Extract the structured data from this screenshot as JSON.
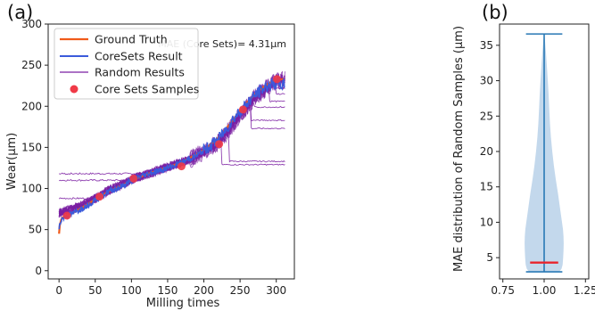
{
  "chart_data": [
    {
      "panel_label": "(a)",
      "type": "line",
      "xlabel": "Milling times",
      "ylabel": "Wear(μm)",
      "xlim": [
        -15,
        325
      ],
      "ylim": [
        -10,
        300
      ],
      "x_ticks": [
        0,
        50,
        100,
        150,
        200,
        250,
        300
      ],
      "y_ticks": [
        0,
        50,
        100,
        150,
        200,
        250,
        300
      ],
      "legend_position": "top-left",
      "annotation": "MAE (Core Sets)= 4.31μm",
      "colors": {
        "ground_truth": "#f05a1a",
        "coresets": "#3b5bdb",
        "random": "#7b1fa2",
        "samples": "#f03a47"
      },
      "series": [
        {
          "name": "Ground Truth",
          "x": [
            0,
            1,
            3,
            5,
            10,
            20,
            30,
            40,
            50,
            60,
            70,
            80,
            90,
            100,
            110,
            120,
            130,
            140,
            150,
            160,
            170,
            180,
            190,
            200,
            210,
            220,
            230,
            240,
            250,
            260,
            270,
            280,
            290,
            300,
            310
          ],
          "y": [
            45,
            55,
            62,
            65,
            67,
            71,
            76,
            81,
            87,
            92,
            97,
            101,
            105,
            110,
            113,
            117,
            120,
            123,
            126,
            129,
            133,
            137,
            142,
            147,
            154,
            162,
            172,
            183,
            195,
            205,
            214,
            222,
            228,
            232,
            233
          ]
        },
        {
          "name": "CoreSets Result",
          "x": [
            0,
            1,
            3,
            5,
            10,
            20,
            30,
            40,
            50,
            60,
            70,
            80,
            90,
            100,
            110,
            120,
            130,
            140,
            150,
            160,
            170,
            180,
            190,
            200,
            210,
            220,
            230,
            240,
            250,
            260,
            270,
            280,
            290,
            300,
            310
          ],
          "y": [
            50,
            56,
            62,
            64,
            66,
            70,
            75,
            80,
            86,
            92,
            97,
            100,
            104,
            110,
            114,
            117,
            120,
            122,
            125,
            128,
            132,
            136,
            140,
            146,
            153,
            160,
            171,
            184,
            194,
            204,
            213,
            220,
            226,
            228,
            226
          ]
        },
        {
          "name": "Random Results",
          "x": [
            0,
            1,
            3,
            5,
            10,
            20,
            30,
            40,
            50,
            60,
            70,
            80,
            90,
            100,
            110,
            120,
            130,
            140,
            150,
            160,
            170,
            180,
            190,
            200,
            210,
            220,
            230,
            240,
            250,
            260,
            270,
            280,
            290,
            300,
            310
          ],
          "y": [
            70,
            70,
            71,
            72,
            73,
            75,
            79,
            83,
            88,
            93,
            98,
            102,
            106,
            111,
            114,
            117,
            120,
            123,
            126,
            129,
            132,
            135,
            140,
            145,
            150,
            156,
            166,
            178,
            190,
            200,
            210,
            218,
            225,
            230,
            232
          ]
        }
      ],
      "random_flat_levels": [
        {
          "start_x": 0,
          "level": 118
        },
        {
          "start_x": 0,
          "level": 110
        },
        {
          "start_x": 0,
          "level": 88
        },
        {
          "start_x": 235,
          "level": 133
        },
        {
          "start_x": 225,
          "level": 129
        },
        {
          "start_x": 265,
          "level": 173
        },
        {
          "start_x": 265,
          "level": 183
        },
        {
          "start_x": 270,
          "level": 199
        },
        {
          "start_x": 290,
          "level": 206
        },
        {
          "start_x": 300,
          "level": 215
        },
        {
          "start_x": 300,
          "level": 222
        }
      ],
      "samples": {
        "name": "Core Sets Samples",
        "x": [
          11,
          56,
          103,
          169,
          221,
          254,
          301
        ],
        "y": [
          67,
          90,
          112,
          127,
          154,
          196,
          233
        ]
      }
    },
    {
      "panel_label": "(b)",
      "type": "violin",
      "ylabel": "MAE distribution of Random Samples (μm)",
      "xlim": [
        0.73,
        1.27
      ],
      "ylim": [
        2.0,
        38.0
      ],
      "x_ticks": [
        0.75,
        1.0,
        1.25
      ],
      "x_tick_labels": [
        "0.75",
        "1.00",
        "1.25"
      ],
      "y_ticks": [
        5,
        10,
        15,
        20,
        25,
        30,
        35
      ],
      "position": 1.0,
      "min": 3.0,
      "max": 36.6,
      "mean": 4.31,
      "density_profile": {
        "y": [
          3.0,
          3.4,
          4,
          5,
          6,
          7,
          8,
          9,
          10,
          12,
          14,
          16,
          18,
          20,
          22,
          24,
          26,
          28,
          30,
          32,
          34,
          36,
          36.6
        ],
        "half_width": [
          0.09,
          0.105,
          0.112,
          0.115,
          0.117,
          0.118,
          0.117,
          0.114,
          0.108,
          0.096,
          0.084,
          0.071,
          0.059,
          0.049,
          0.041,
          0.035,
          0.031,
          0.027,
          0.022,
          0.017,
          0.011,
          0.004,
          0.0
        ]
      },
      "colors": {
        "body": "#c3d8ec",
        "lines": "#2878b5",
        "mean": "#e8242c"
      }
    }
  ]
}
